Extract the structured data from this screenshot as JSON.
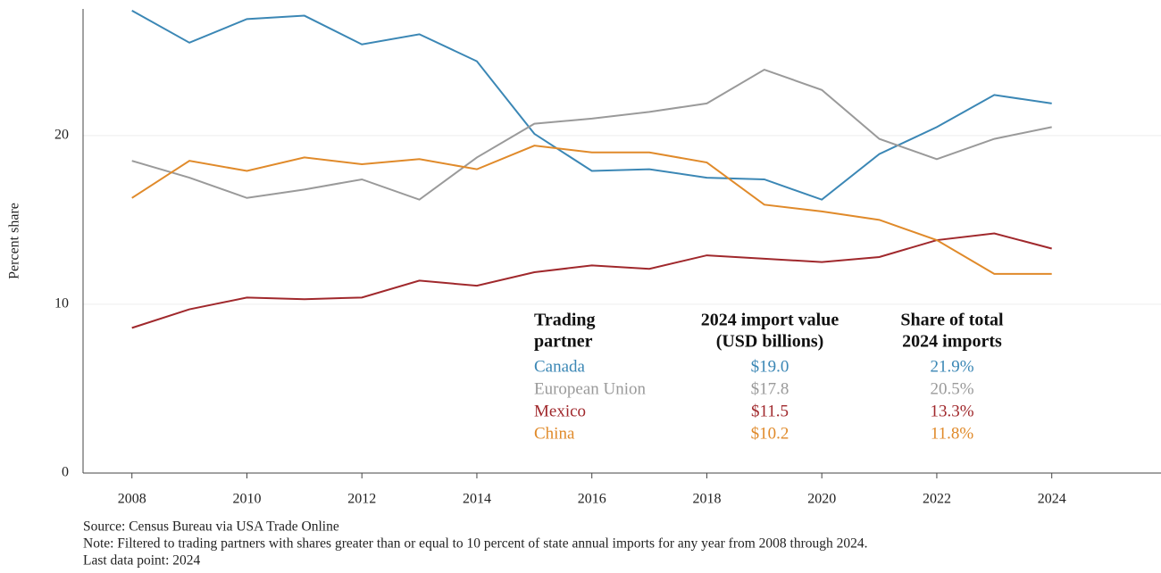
{
  "chart_data": {
    "type": "line",
    "y_label": "Percent share",
    "x": [
      2008,
      2009,
      2010,
      2011,
      2012,
      2013,
      2014,
      2015,
      2016,
      2017,
      2018,
      2019,
      2020,
      2021,
      2022,
      2023,
      2024
    ],
    "series": [
      {
        "name": "Canada",
        "color": "#3b87b5",
        "values": [
          27.4,
          25.5,
          26.9,
          27.1,
          25.4,
          26.0,
          24.4,
          20.1,
          17.9,
          18.0,
          17.5,
          17.4,
          16.2,
          18.9,
          20.5,
          22.4,
          21.9
        ]
      },
      {
        "name": "European Union",
        "color": "#9a9a9a",
        "values": [
          18.5,
          17.5,
          16.3,
          16.8,
          17.4,
          16.2,
          18.7,
          20.7,
          21.0,
          21.4,
          21.9,
          23.9,
          22.7,
          19.8,
          18.6,
          19.8,
          20.5
        ]
      },
      {
        "name": "Mexico",
        "color": "#a0282c",
        "values": [
          8.6,
          9.7,
          10.4,
          10.3,
          10.4,
          11.4,
          11.1,
          11.9,
          12.3,
          12.1,
          12.9,
          12.7,
          12.5,
          12.8,
          13.8,
          14.2,
          13.3
        ]
      },
      {
        "name": "China",
        "color": "#e08a2a",
        "values": [
          16.3,
          18.5,
          17.9,
          18.7,
          18.3,
          18.6,
          18.0,
          19.4,
          19.0,
          19.0,
          18.4,
          15.9,
          15.5,
          15.0,
          13.8,
          11.8,
          11.8
        ]
      }
    ],
    "xlim": [
      2007.15,
      2025.9
    ],
    "ylim": [
      0,
      27.5
    ],
    "xticks": [
      2008,
      2010,
      2012,
      2014,
      2016,
      2018,
      2020,
      2022,
      2024
    ],
    "yticks": [
      0,
      10,
      20
    ],
    "grid": true,
    "table": {
      "headers": [
        [
          "Trading",
          "partner"
        ],
        [
          "2024 import value",
          "(USD billions)"
        ],
        [
          "Share of total",
          "2024 imports"
        ]
      ],
      "rows": [
        [
          "Canada",
          "$19.0",
          "21.9%"
        ],
        [
          "European Union",
          "$17.8",
          "20.5%"
        ],
        [
          "Mexico",
          "$11.5",
          "13.3%"
        ],
        [
          "China",
          "$10.2",
          "11.8%"
        ]
      ]
    },
    "footnotes": [
      "Source: Census Bureau via USA Trade Online",
      "Note: Filtered to trading partners with shares greater than or equal to 10 percent of state annual imports for any year from 2008 through 2024.",
      "Last data point: 2024"
    ]
  }
}
